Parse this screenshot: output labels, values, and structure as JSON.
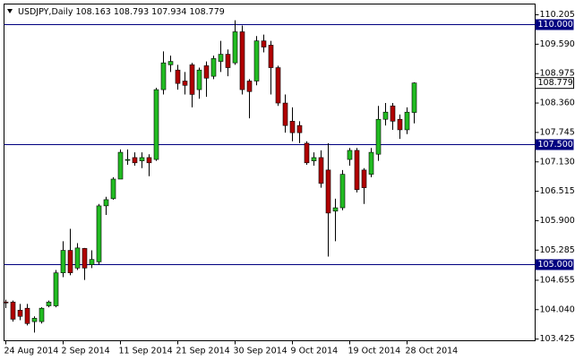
{
  "chart_data": {
    "type": "candlestick",
    "title": "USDJPY,Daily",
    "categories": [
      "24 Aug 2014",
      null,
      null,
      null,
      null,
      null,
      null,
      null,
      "2 Sep 2014",
      null,
      null,
      null,
      null,
      null,
      null,
      null,
      "11 Sep 2014",
      null,
      null,
      null,
      null,
      null,
      null,
      null,
      "21 Sep 2014",
      null,
      null,
      null,
      null,
      null,
      null,
      null,
      "30 Sep 2014",
      null,
      null,
      null,
      null,
      null,
      null,
      null,
      "9 Oct 2014",
      null,
      null,
      null,
      null,
      null,
      null,
      null,
      "19 Oct 2014",
      null,
      null,
      null,
      null,
      null,
      null,
      null,
      "28 Oct 2014",
      null
    ],
    "open": [
      104.2,
      104.2,
      104.03,
      104.07,
      103.79,
      103.79,
      104.12,
      104.12,
      104.81,
      105.28,
      104.91,
      105.32,
      104.98,
      105.04,
      106.21,
      106.36,
      106.77,
      107.18,
      107.22,
      107.15,
      107.22,
      107.18,
      108.64,
      109.16,
      109.05,
      108.82,
      109.16,
      108.64,
      109.14,
      108.92,
      109.23,
      109.38,
      109.2,
      109.85,
      108.82,
      108.82,
      109.66,
      109.57,
      109.1,
      108.36,
      107.98,
      107.89,
      107.52,
      107.15,
      107.22,
      106.96,
      106.1,
      106.17,
      107.18,
      107.37,
      106.96,
      106.87,
      107.29,
      108.02,
      108.3,
      108.02,
      107.8,
      108.163
    ],
    "high": [
      104.25,
      104.23,
      104.16,
      104.16,
      103.9,
      104.09,
      104.23,
      104.87,
      105.47,
      105.73,
      105.43,
      105.33,
      105.28,
      106.25,
      106.4,
      106.81,
      107.39,
      107.39,
      107.33,
      107.33,
      107.29,
      108.68,
      109.44,
      109.35,
      109.16,
      109.01,
      109.2,
      109.1,
      109.23,
      109.35,
      109.66,
      109.48,
      110.09,
      109.98,
      108.86,
      109.76,
      109.79,
      109.66,
      109.14,
      108.54,
      108.27,
      107.98,
      107.56,
      107.33,
      107.37,
      107.52,
      106.36,
      106.96,
      107.42,
      107.42,
      107.0,
      107.42,
      108.3,
      108.36,
      108.36,
      108.12,
      108.27,
      108.793
    ],
    "low": [
      104.07,
      103.79,
      103.82,
      103.71,
      103.56,
      103.75,
      104.09,
      104.09,
      104.72,
      104.76,
      104.87,
      104.66,
      104.91,
      104.98,
      106.02,
      106.34,
      106.77,
      107.07,
      107.05,
      107.0,
      106.83,
      107.15,
      108.54,
      109.01,
      108.64,
      108.54,
      108.27,
      108.45,
      108.49,
      108.86,
      109.01,
      108.92,
      109.16,
      108.54,
      108.04,
      108.73,
      109.42,
      108.54,
      108.3,
      107.74,
      107.56,
      107.52,
      107.07,
      107.05,
      106.59,
      105.15,
      105.47,
      106.12,
      107.05,
      106.49,
      106.25,
      106.81,
      107.15,
      107.89,
      107.8,
      107.61,
      107.71,
      107.934
    ],
    "close": [
      104.18,
      103.84,
      103.9,
      103.75,
      103.86,
      104.07,
      104.2,
      104.81,
      105.28,
      104.81,
      105.33,
      104.91,
      105.09,
      106.21,
      106.34,
      106.77,
      107.33,
      107.18,
      107.11,
      107.22,
      107.11,
      108.64,
      109.2,
      109.23,
      108.77,
      108.73,
      108.54,
      109.05,
      108.88,
      109.29,
      109.38,
      109.1,
      109.85,
      108.64,
      108.6,
      109.66,
      109.53,
      109.1,
      108.36,
      107.89,
      107.74,
      107.74,
      107.11,
      107.22,
      106.68,
      106.06,
      106.17,
      106.87,
      107.37,
      106.55,
      106.59,
      107.33,
      108.02,
      108.17,
      107.98,
      107.8,
      108.17,
      108.779
    ],
    "up_color": "#22bb22",
    "down_color": "#b00000",
    "wick_color": "#000000",
    "ylim": [
      103.39,
      110.43
    ],
    "yticks": [
      110.205,
      {
        "value": 109.59,
        "label": "109.590"
      },
      108.975,
      {
        "value": 108.36,
        "label": "108.360"
      },
      107.745,
      {
        "value": 107.13,
        "label": "107.130"
      },
      106.515,
      {
        "value": 105.9,
        "label": "105.900"
      },
      105.285,
      104.655,
      {
        "value": 104.04,
        "label": "104.040"
      },
      103.425
    ],
    "hlines": [
      {
        "value": 110,
        "label": "110.000"
      },
      {
        "value": 107.5,
        "label": "107.500"
      },
      {
        "value": 105,
        "label": "105.000"
      }
    ],
    "hline_color": "#000080"
  }
}
